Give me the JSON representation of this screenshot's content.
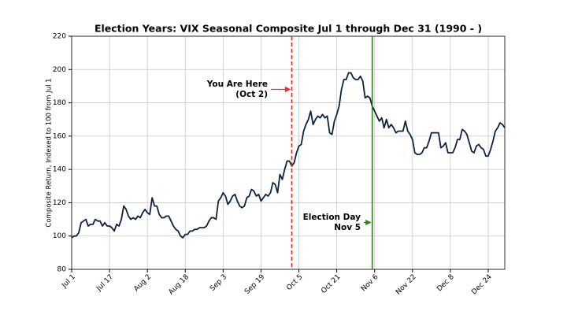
{
  "chart_data": {
    "type": "line",
    "title": "Election Years: VIX Seasonal Composite Jul 1 through Dec 31 (1990 - )",
    "y_label": "Composite Return, Indexed to 100 from Jul 1",
    "color": "#0d2240",
    "grid": true,
    "xlim": [
      0,
      183
    ],
    "xticks": [
      {
        "value": 0,
        "label": "Jul 1"
      },
      {
        "value": 16,
        "label": "Jul 17"
      },
      {
        "value": 32,
        "label": "Aug 2"
      },
      {
        "value": 48,
        "label": "Aug 18"
      },
      {
        "value": 64,
        "label": "Sep 3"
      },
      {
        "value": 80,
        "label": "Sep 19"
      },
      {
        "value": 96,
        "label": "Oct 5"
      },
      {
        "value": 112,
        "label": "Oct 21"
      },
      {
        "value": 128,
        "label": "Nov 6"
      },
      {
        "value": 144,
        "label": "Nov 22"
      },
      {
        "value": 160,
        "label": "Dec 8"
      },
      {
        "value": 176,
        "label": "Dec 24"
      }
    ],
    "ylim": [
      80,
      220
    ],
    "yticks": [
      80,
      100,
      120,
      140,
      160,
      180,
      200,
      220
    ],
    "x": [
      0,
      1,
      2,
      3,
      4,
      5,
      6,
      7,
      8,
      9,
      10,
      11,
      12,
      13,
      14,
      15,
      16,
      17,
      18,
      19,
      20,
      21,
      22,
      23,
      24,
      25,
      26,
      27,
      28,
      29,
      30,
      31,
      32,
      33,
      34,
      35,
      36,
      37,
      38,
      39,
      40,
      41,
      42,
      43,
      44,
      45,
      46,
      47,
      48,
      49,
      50,
      51,
      52,
      53,
      54,
      55,
      56,
      57,
      58,
      59,
      60,
      61,
      62,
      63,
      64,
      65,
      66,
      67,
      68,
      69,
      70,
      71,
      72,
      73,
      74,
      75,
      76,
      77,
      78,
      79,
      80,
      81,
      82,
      83,
      84,
      85,
      86,
      87,
      88,
      89,
      90,
      91,
      92,
      93,
      94,
      95,
      96,
      97,
      98,
      99,
      100,
      101,
      102,
      103,
      104,
      105,
      106,
      107,
      108,
      109,
      110,
      111,
      112,
      113,
      114,
      115,
      116,
      117,
      118,
      119,
      120,
      121,
      122,
      123,
      124,
      125,
      126,
      127,
      128,
      129,
      130,
      131,
      132,
      133,
      134,
      135,
      136,
      137,
      138,
      139,
      140,
      141,
      142,
      143,
      144,
      145,
      146,
      147,
      148,
      149,
      150,
      151,
      152,
      153,
      154,
      155,
      156,
      157,
      158,
      159,
      160,
      161,
      162,
      163,
      164,
      165,
      166,
      167,
      168,
      169,
      170,
      171,
      172,
      173,
      174,
      175,
      176,
      177,
      178,
      179,
      180,
      181,
      182,
      183
    ],
    "values": [
      99,
      100,
      100,
      102,
      108,
      109,
      110,
      106,
      107,
      107,
      110,
      109,
      109,
      106,
      108,
      106,
      106,
      105,
      103,
      107,
      106,
      110,
      118,
      116,
      112,
      110,
      111,
      110,
      112,
      111,
      114,
      116,
      114,
      113,
      123,
      118,
      118,
      113,
      111,
      111,
      112,
      112,
      109,
      106,
      104,
      103,
      100,
      99,
      101,
      101,
      103,
      103,
      104,
      104,
      105,
      105,
      105,
      106,
      109,
      111,
      111,
      110,
      121,
      123,
      126,
      124,
      119,
      121,
      124,
      125,
      121,
      118,
      117,
      118,
      123,
      124,
      128,
      127,
      124,
      125,
      121,
      123,
      125,
      124,
      126,
      132,
      131,
      126,
      137,
      134,
      140,
      145,
      145,
      142,
      144,
      150,
      154,
      155,
      163,
      167,
      170,
      175,
      167,
      170,
      172,
      171,
      173,
      171,
      172,
      162,
      161,
      169,
      173,
      178,
      188,
      194,
      194,
      198,
      198,
      195,
      194,
      194,
      196,
      193,
      183,
      184,
      183,
      178,
      175,
      172,
      169,
      171,
      165,
      170,
      165,
      167,
      165,
      162,
      163,
      163,
      163,
      169,
      163,
      161,
      158,
      150,
      149,
      149,
      150,
      153,
      153,
      157,
      162,
      162,
      162,
      162,
      153,
      154,
      156,
      150,
      150,
      150,
      153,
      158,
      158,
      164,
      163,
      161,
      156,
      151,
      150,
      154,
      155,
      153,
      152,
      148,
      148,
      152,
      157,
      163,
      165,
      168,
      167,
      165
    ],
    "vlines": [
      {
        "x": 93,
        "color": "#e0302a",
        "style": "dashed",
        "label": [
          "You Are Here",
          "(Oct 2)"
        ]
      },
      {
        "x": 127,
        "color": "#2e7d1a",
        "style": "solid",
        "label": [
          "Election Day",
          "Nov 5"
        ]
      }
    ]
  }
}
